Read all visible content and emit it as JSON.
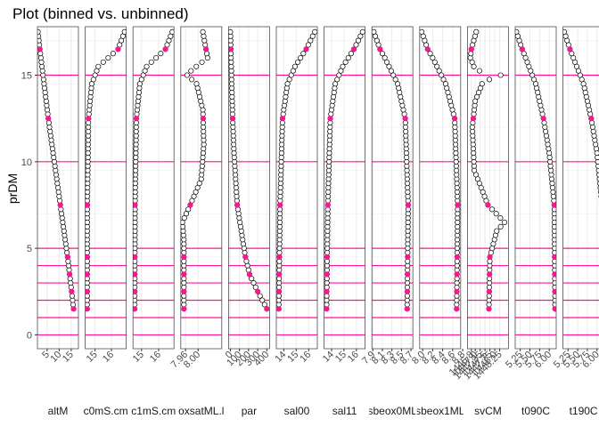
{
  "chart_data": {
    "type": "scatter",
    "title": "Plot (binned vs. unbinned)",
    "ylabel": "prDM",
    "ylim": [
      17.8,
      -0.8
    ],
    "y_ticks": [
      0,
      5,
      10,
      15
    ],
    "reference_depths": [
      0,
      1,
      2,
      3,
      4,
      5,
      10,
      15
    ],
    "binned_depths": [
      1.5,
      2.5,
      3.5,
      4.5,
      7.5,
      12.5,
      16.5
    ],
    "unbinned_depth_start": 1.5,
    "unbinned_depth_step": 0.25,
    "unbinned_depth_end": 17.5,
    "colors": {
      "binned": "#FF1493",
      "reference": "#FF1493",
      "unbinned_fill": "#ffffff",
      "unbinned_stroke": "#000000",
      "panel_border": "#4d4d4d",
      "grid": "#ebebeb"
    },
    "panels": [
      {
        "label": "altM",
        "xlim": [
          1,
          18
        ],
        "ticks": [
          5,
          10,
          15
        ],
        "tick_labels": [
          "5",
          "10",
          "15"
        ],
        "profile": [
          [
            1.5,
            16
          ],
          [
            4.5,
            13.5
          ],
          [
            7.5,
            10.5
          ],
          [
            12.5,
            5.5
          ],
          [
            16.5,
            2
          ],
          [
            17.5,
            1.2
          ]
        ]
      },
      {
        "label": "c0mS.cm",
        "xlim": [
          14.4,
          16.9
        ],
        "ticks": [
          15,
          16
        ],
        "tick_labels": [
          "15",
          "16"
        ],
        "profile": [
          [
            1.5,
            14.52
          ],
          [
            7.5,
            14.53
          ],
          [
            12.5,
            14.6
          ],
          [
            14.5,
            14.8
          ],
          [
            15.5,
            15.2
          ],
          [
            16.5,
            16.4
          ],
          [
            17.5,
            16.8
          ]
        ]
      },
      {
        "label": "c1mS.cm",
        "xlim": [
          14.5,
          16.9
        ],
        "ticks": [
          15,
          16
        ],
        "tick_labels": [
          "15",
          "16"
        ],
        "profile": [
          [
            1.5,
            14.6
          ],
          [
            7.5,
            14.62
          ],
          [
            12.5,
            14.7
          ],
          [
            14.5,
            14.9
          ],
          [
            15.5,
            15.3
          ],
          [
            16.5,
            16.4
          ],
          [
            17.5,
            16.8
          ]
        ]
      },
      {
        "label": "oxsatML.l",
        "xlim": [
          7.945,
          8.075
        ],
        "ticks": [
          7.96,
          8.0
        ],
        "tick_labels": [
          "7.96",
          "8.00"
        ],
        "profile": [
          [
            1.5,
            7.955
          ],
          [
            5.5,
            7.955
          ],
          [
            6.5,
            7.95
          ],
          [
            7.5,
            7.975
          ],
          [
            9,
            8.01
          ],
          [
            11,
            8.018
          ],
          [
            13,
            8.015
          ],
          [
            14.5,
            7.995
          ],
          [
            15,
            7.965
          ],
          [
            15.3,
            7.98
          ],
          [
            16,
            8.03
          ],
          [
            16.5,
            8.025
          ],
          [
            17.5,
            8.015
          ]
        ]
      },
      {
        "label": "par",
        "xlim": [
          -20,
          430
        ],
        "ticks": [
          0,
          100,
          200,
          300,
          400
        ],
        "tick_labels": [
          "0",
          "100",
          "200",
          "300",
          "400"
        ],
        "profile": [
          [
            1.5,
            400
          ],
          [
            2.5,
            300
          ],
          [
            3.5,
            210
          ],
          [
            4.5,
            165
          ],
          [
            7.5,
            75
          ],
          [
            10.5,
            40
          ],
          [
            12.5,
            25
          ],
          [
            16.5,
            5
          ],
          [
            17.5,
            0
          ]
        ]
      },
      {
        "label": "sal00",
        "xlim": [
          13.4,
          16.7
        ],
        "ticks": [
          14,
          15,
          16
        ],
        "tick_labels": [
          "14",
          "15",
          "16"
        ],
        "profile": [
          [
            1.5,
            13.6
          ],
          [
            7.5,
            13.7
          ],
          [
            12.5,
            13.9
          ],
          [
            14.5,
            14.3
          ],
          [
            15.5,
            14.9
          ],
          [
            16.5,
            15.8
          ],
          [
            17.5,
            16.5
          ]
        ]
      },
      {
        "label": "sal11",
        "xlim": [
          13.4,
          16.7
        ],
        "ticks": [
          14,
          15,
          16
        ],
        "tick_labels": [
          "14",
          "15",
          "16"
        ],
        "profile": [
          [
            1.5,
            13.6
          ],
          [
            7.5,
            13.7
          ],
          [
            12.5,
            13.9
          ],
          [
            14.5,
            14.3
          ],
          [
            15.5,
            14.9
          ],
          [
            16.5,
            15.8
          ],
          [
            17.5,
            16.5
          ]
        ]
      },
      {
        "label": "sbeox0ML",
        "xlim": [
          7.88,
          8.74
        ],
        "ticks": [
          7.9,
          8.1,
          8.3,
          8.5,
          8.7
        ],
        "tick_labels": [
          "7.9",
          "8.1",
          "8.3",
          "8.5",
          "8.7"
        ],
        "profile": [
          [
            1.5,
            8.62
          ],
          [
            7.5,
            8.64
          ],
          [
            12.5,
            8.58
          ],
          [
            14.5,
            8.42
          ],
          [
            16,
            8.15
          ],
          [
            16.5,
            8.05
          ],
          [
            17.5,
            7.92
          ]
        ]
      },
      {
        "label": "sbeox1ML",
        "xlim": [
          7.94,
          8.76
        ],
        "ticks": [
          8.0,
          8.2,
          8.4,
          8.6,
          8.8
        ],
        "tick_labels": [
          "8.0",
          "8.2",
          "8.4",
          "8.6",
          "8.8"
        ],
        "profile": [
          [
            1.5,
            8.68
          ],
          [
            7.5,
            8.7
          ],
          [
            12.5,
            8.64
          ],
          [
            14.5,
            8.46
          ],
          [
            16,
            8.2
          ],
          [
            16.5,
            8.1
          ],
          [
            17.5,
            7.98
          ]
        ]
      },
      {
        "label": "svCM",
        "xlim": [
          1446.6,
          1448.7
        ],
        "ticks": [
          1446.8,
          1447.0,
          1447.25,
          1447.5,
          1447.75,
          1448.0,
          1448.25
        ],
        "tick_labels": [
          "1446.8",
          "1447.0",
          "1447.25",
          "1447.5",
          "1447.75",
          "1448.0",
          "1448.25"
        ],
        "profile": [
          [
            1.5,
            1447.7
          ],
          [
            4.5,
            1447.75
          ],
          [
            6,
            1448.1
          ],
          [
            6.5,
            1448.5
          ],
          [
            7.5,
            1447.65
          ],
          [
            9.5,
            1446.95
          ],
          [
            12,
            1446.85
          ],
          [
            13.5,
            1447.0
          ],
          [
            14.5,
            1447.35
          ],
          [
            14.8,
            1447.8
          ],
          [
            15,
            1448.3
          ],
          [
            15.3,
            1447.0
          ],
          [
            16,
            1446.75
          ],
          [
            16.5,
            1446.8
          ],
          [
            17.5,
            1447.05
          ]
        ]
      },
      {
        "label": "t090C",
        "xlim": [
          5.12,
          6.18
        ],
        "ticks": [
          5.25,
          5.5,
          5.75,
          6.0
        ],
        "tick_labels": [
          "5.25",
          "5.50",
          "5.75",
          "6.00"
        ],
        "profile": [
          [
            1.5,
            6.15
          ],
          [
            7.5,
            6.13
          ],
          [
            10.5,
            6.0
          ],
          [
            12.5,
            5.85
          ],
          [
            14.5,
            5.65
          ],
          [
            16.5,
            5.3
          ],
          [
            17.5,
            5.15
          ]
        ]
      },
      {
        "label": "t190C",
        "xlim": [
          5.12,
          6.18
        ],
        "ticks": [
          5.25,
          5.5,
          5.75,
          6.0
        ],
        "tick_labels": [
          "5.25",
          "5.50",
          "5.75",
          "6.00"
        ],
        "profile": [
          [
            1.5,
            6.15
          ],
          [
            7.5,
            6.13
          ],
          [
            10.5,
            6.0
          ],
          [
            12.5,
            5.85
          ],
          [
            14.5,
            5.65
          ],
          [
            16.5,
            5.3
          ],
          [
            17.5,
            5.15
          ]
        ]
      }
    ]
  }
}
